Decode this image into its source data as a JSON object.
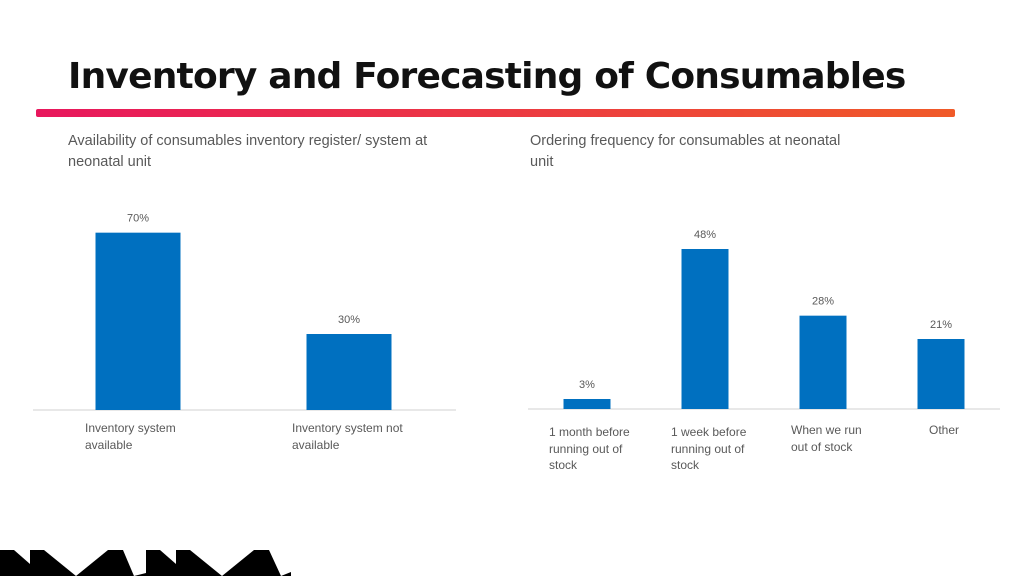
{
  "title": "Inventory and Forecasting of Consumables",
  "colors": {
    "bar": "#0070C0",
    "axis": "#D9D9D9",
    "gradient_start": "#E8175D",
    "gradient_end": "#F05A28"
  },
  "chart_data": [
    {
      "type": "bar",
      "title": "Availability of consumables inventory register/ system at neonatal unit",
      "categories": [
        "Inventory system available",
        "Inventory system not available"
      ],
      "values": [
        70,
        30
      ],
      "value_labels": [
        "70%",
        "30%"
      ],
      "ylim": [
        0,
        75
      ],
      "xlabel": "",
      "ylabel": "",
      "grid": false,
      "legend": "none"
    },
    {
      "type": "bar",
      "title": "Ordering frequency for consumables at neonatal unit",
      "categories": [
        "1 month before running out of stock",
        "1 week before running out of stock",
        "When we run out of stock",
        "Other"
      ],
      "values": [
        3,
        48,
        28,
        21
      ],
      "value_labels": [
        "3%",
        "48%",
        "28%",
        "21%"
      ],
      "ylim": [
        0,
        60
      ],
      "xlabel": "",
      "ylabel": "",
      "grid": false,
      "legend": "none"
    }
  ]
}
